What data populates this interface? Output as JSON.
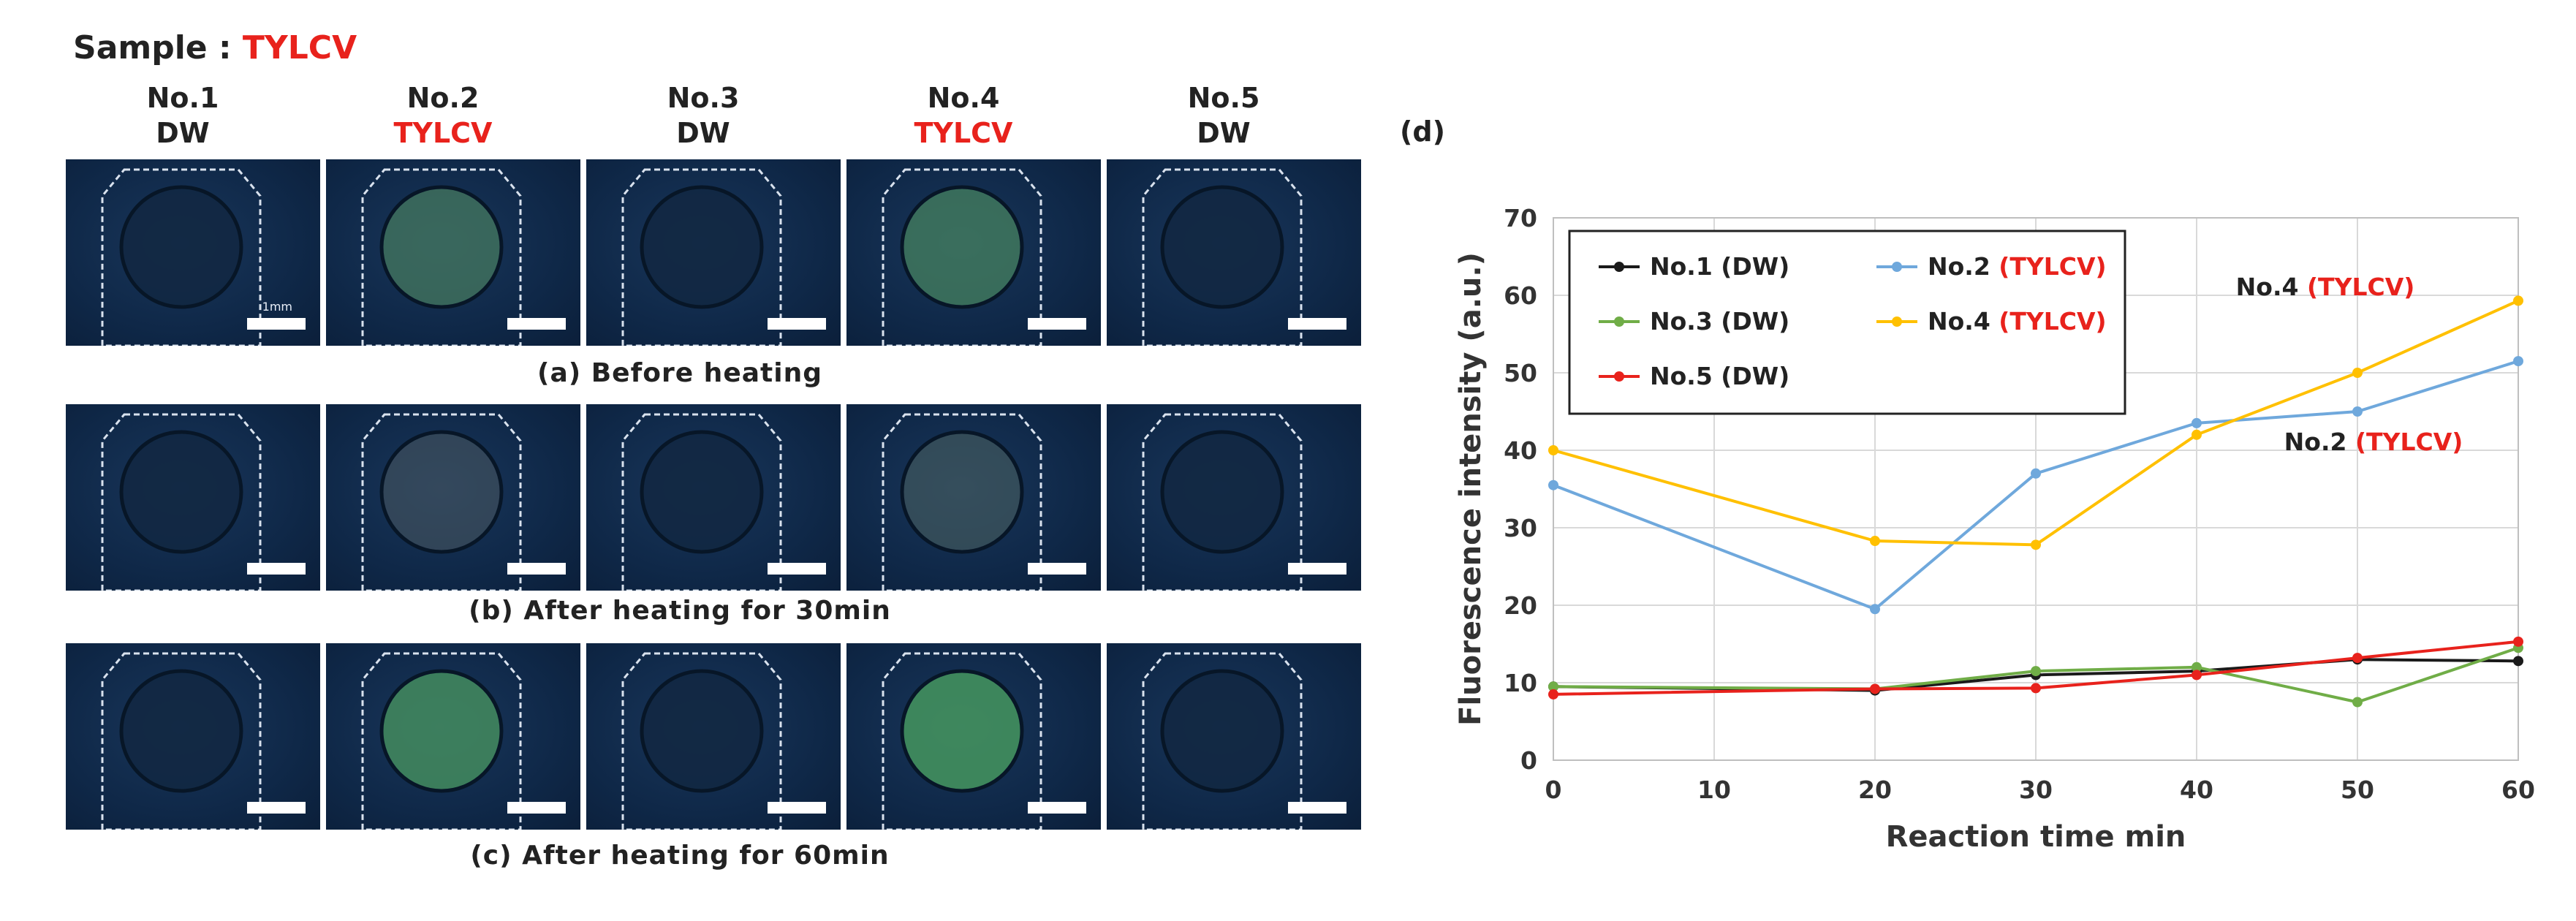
{
  "sample": {
    "label": "Sample : ",
    "value": "TYLCV"
  },
  "columns": [
    {
      "no": "No.1",
      "type": "DW",
      "color": "#222222"
    },
    {
      "no": "No.2",
      "type": "TYLCV",
      "color": "#e8221c"
    },
    {
      "no": "No.3",
      "type": "DW",
      "color": "#222222"
    },
    {
      "no": "No.4",
      "type": "TYLCV",
      "color": "#e8221c"
    },
    {
      "no": "No.5",
      "type": "DW",
      "color": "#222222"
    }
  ],
  "scale_label": "1mm",
  "captions": {
    "a": "(a) Before heating",
    "b": "(b) After heating for 30min",
    "c": "(c) After heating for 60min"
  },
  "spots": {
    "a": [
      0.02,
      0.55,
      0.03,
      0.6,
      0.02
    ],
    "b": [
      0.03,
      0.3,
      0.03,
      0.35,
      0.02
    ],
    "c": [
      0.03,
      0.7,
      0.03,
      0.75,
      0.02
    ]
  },
  "panel_d_label": "(d)",
  "chart_data": {
    "type": "line",
    "xlabel": "Reaction time  min",
    "ylabel": "Fluorescence intensity  (a.u.)",
    "xlim": [
      0,
      60
    ],
    "ylim": [
      0,
      70
    ],
    "xticks": [
      0,
      10,
      20,
      30,
      40,
      50,
      60
    ],
    "yticks": [
      0,
      10,
      20,
      30,
      40,
      50,
      60,
      70
    ],
    "grid": true,
    "legend_position": "top-left",
    "x": [
      0,
      20,
      30,
      40,
      50,
      60
    ],
    "series": [
      {
        "name": "No.1 (DW)",
        "prefix": "No.1 ",
        "tag": "(DW)",
        "tag_color": "#222222",
        "color": "#1a1a1a",
        "values": [
          9.5,
          9.0,
          11.0,
          11.5,
          13.0,
          12.8
        ]
      },
      {
        "name": "No.2 (TYLCV)",
        "prefix": "No.2 ",
        "tag": "(TYLCV)",
        "tag_color": "#e8221c",
        "color": "#6fa8dc",
        "values": [
          35.5,
          19.5,
          37.0,
          43.5,
          45.0,
          51.5
        ]
      },
      {
        "name": "No.3 (DW)",
        "prefix": "No.3 ",
        "tag": "(DW)",
        "tag_color": "#222222",
        "color": "#70ad47",
        "values": [
          9.5,
          9.2,
          11.5,
          12.0,
          7.5,
          14.5
        ]
      },
      {
        "name": "No.4 (TYLCV)",
        "prefix": "No.4 ",
        "tag": "(TYLCV)",
        "tag_color": "#e8221c",
        "color": "#ffc000",
        "values": [
          40.0,
          28.3,
          27.8,
          42.0,
          50.0,
          59.3
        ]
      },
      {
        "name": "No.5 (DW)",
        "prefix": "No.5 ",
        "tag": "(DW)",
        "tag_color": "#222222",
        "color": "#e8221c",
        "values": [
          8.5,
          9.2,
          9.3,
          11.0,
          13.2,
          15.3
        ]
      }
    ],
    "annotations": [
      {
        "prefix": "No.4 ",
        "tag": "(TYLCV)",
        "x": 48,
        "y": 60
      },
      {
        "prefix": "No.2 ",
        "tag": "(TYLCV)",
        "x": 51,
        "y": 40
      }
    ]
  }
}
